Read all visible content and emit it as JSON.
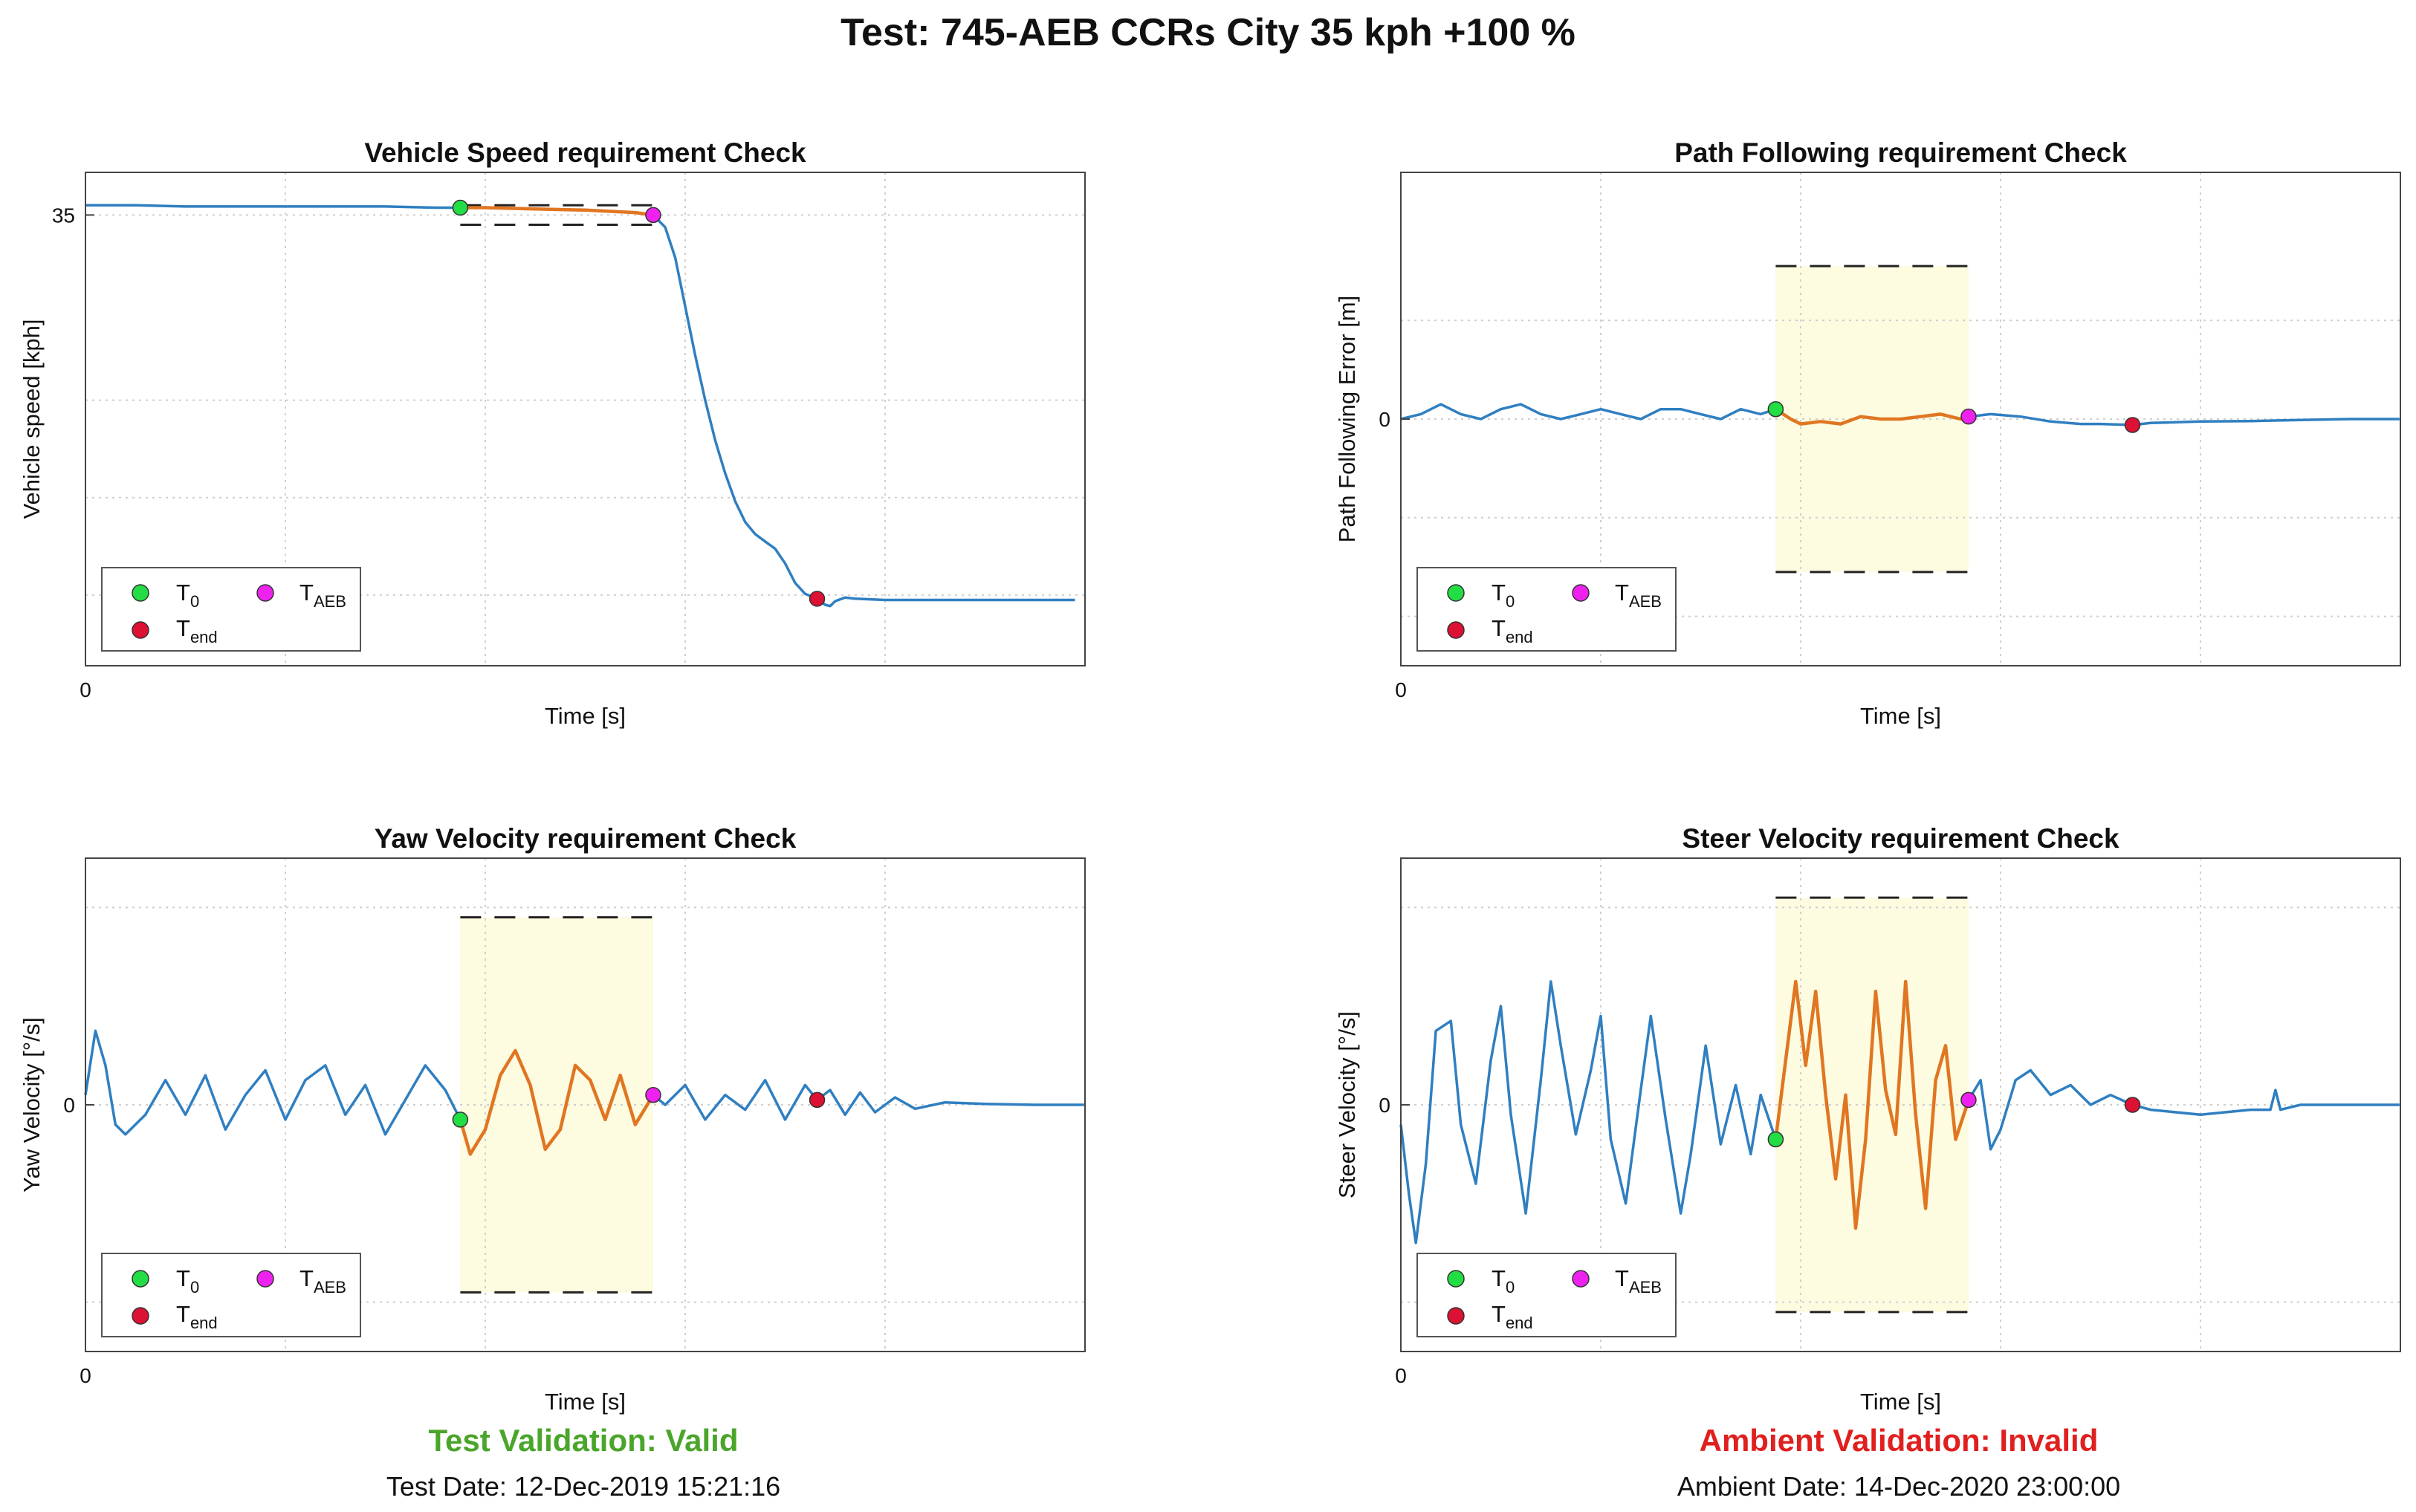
{
  "main_title": "Test: 745-AEB CCRs City 35 kph +100 %",
  "legend_labels": {
    "t0_base": "T",
    "t0_sub": "0",
    "taeb_base": "T",
    "taeb_sub": "AEB",
    "tend_base": "T",
    "tend_sub": "end"
  },
  "colors": {
    "signal": "#2f7fc1",
    "segment": "#e07622",
    "band": "#fdfbe0",
    "t0": "#22dd44",
    "taeb": "#ee22ee",
    "tend": "#dd1133",
    "valid": "#4aa52a",
    "invalid": "#e0201e"
  },
  "footer": {
    "left_status": "Test Validation: Valid",
    "left_date": "Test Date: 12-Dec-2019 15:21:16",
    "right_status": "Ambient Validation: Invalid",
    "right_date": "Ambient Date: 14-Dec-2020 23:00:00"
  },
  "chart_data": [
    {
      "type": "line",
      "id": "speed",
      "title": "Vehicle Speed requirement Check",
      "xlabel": "Time [s]",
      "ylabel": "Vehicle speed [kph]",
      "x_tick_labels": [
        "0"
      ],
      "y_tick_labels": [
        "35"
      ],
      "xlim": [
        0,
        10
      ],
      "ylim": [
        -2,
        38.5
      ],
      "y_ticks": [
        35
      ],
      "y_grid": [
        35,
        19.8,
        11.8,
        3.8
      ],
      "x_grid": [
        2,
        4,
        6,
        8
      ],
      "t0": 3.75,
      "taeb": 5.68,
      "tend": 7.32,
      "band": {
        "x0": 3.75,
        "x1": 5.68,
        "lo": 34.2,
        "hi": 35.8,
        "fill": false
      },
      "series": {
        "name": "Vehicle speed",
        "x": [
          0,
          0.5,
          1,
          1.5,
          2,
          2.5,
          3,
          3.5,
          3.75,
          4,
          4.5,
          5,
          5.5,
          5.68,
          5.8,
          5.9,
          6.0,
          6.1,
          6.2,
          6.3,
          6.4,
          6.5,
          6.6,
          6.7,
          6.8,
          6.9,
          7.0,
          7.1,
          7.2,
          7.32,
          7.4,
          7.45,
          7.5,
          7.6,
          7.7,
          8,
          9,
          9.9
        ],
        "y": [
          35.8,
          35.8,
          35.7,
          35.7,
          35.7,
          35.7,
          35.7,
          35.6,
          35.6,
          35.6,
          35.5,
          35.4,
          35.2,
          35.0,
          34.0,
          31.5,
          27.5,
          23.5,
          19.8,
          16.5,
          13.8,
          11.5,
          9.8,
          8.8,
          8.2,
          7.6,
          6.4,
          4.8,
          3.9,
          3.5,
          3.0,
          2.9,
          3.3,
          3.6,
          3.5,
          3.4,
          3.4,
          3.4
        ]
      }
    },
    {
      "type": "line",
      "id": "path",
      "title": "Path Following requirement Check",
      "xlabel": "Time [s]",
      "ylabel": "Path Following Error [m]",
      "x_tick_labels": [
        "0"
      ],
      "y_tick_labels": [
        "0"
      ],
      "xlim": [
        0,
        10
      ],
      "ylim": [
        -0.5,
        0.5
      ],
      "y_ticks": [
        0
      ],
      "y_grid": [
        0.2,
        0,
        -0.2,
        -0.4
      ],
      "x_grid": [
        2,
        4,
        6,
        8
      ],
      "t0": 3.75,
      "taeb": 5.68,
      "tend": 7.32,
      "band": {
        "x0": 3.75,
        "x1": 5.68,
        "lo": -0.31,
        "hi": 0.31,
        "fill": true
      },
      "series": {
        "name": "Path following error",
        "x": [
          0,
          0.2,
          0.4,
          0.6,
          0.8,
          1.0,
          1.2,
          1.4,
          1.6,
          1.8,
          2.0,
          2.2,
          2.4,
          2.6,
          2.8,
          3.0,
          3.2,
          3.4,
          3.6,
          3.75,
          3.9,
          4.0,
          4.2,
          4.4,
          4.6,
          4.8,
          5.0,
          5.2,
          5.4,
          5.6,
          5.68,
          5.9,
          6.2,
          6.5,
          6.8,
          7.0,
          7.32,
          7.5,
          8.0,
          8.5,
          9.0,
          9.5,
          9.99
        ],
        "y": [
          0.0,
          0.01,
          0.03,
          0.01,
          0.0,
          0.02,
          0.03,
          0.01,
          0.0,
          0.01,
          0.02,
          0.01,
          0.0,
          0.02,
          0.02,
          0.01,
          0.0,
          0.02,
          0.01,
          0.02,
          0.0,
          -0.01,
          -0.005,
          -0.01,
          0.005,
          0.0,
          0.0,
          0.005,
          0.01,
          0.0,
          0.005,
          0.01,
          0.005,
          -0.005,
          -0.01,
          -0.01,
          -0.012,
          -0.008,
          -0.005,
          -0.004,
          -0.002,
          0.0,
          0.0
        ]
      }
    },
    {
      "type": "line",
      "id": "yaw",
      "title": "Yaw Velocity requirement Check",
      "xlabel": "Time [s]",
      "ylabel": "Yaw Velocity [°/s]",
      "x_tick_labels": [
        "0"
      ],
      "y_tick_labels": [
        "0"
      ],
      "xlim": [
        0,
        10
      ],
      "ylim": [
        -5,
        5
      ],
      "y_ticks": [
        0
      ],
      "y_grid": [
        4,
        0,
        -4
      ],
      "x_grid": [
        2,
        4,
        6,
        8
      ],
      "t0": 3.75,
      "taeb": 5.68,
      "tend": 7.32,
      "band": {
        "x0": 3.75,
        "x1": 5.68,
        "lo": -3.8,
        "hi": 3.8,
        "fill": true
      },
      "series": {
        "name": "Yaw velocity",
        "x": [
          0,
          0.1,
          0.2,
          0.3,
          0.4,
          0.6,
          0.8,
          1.0,
          1.2,
          1.4,
          1.6,
          1.8,
          2.0,
          2.2,
          2.4,
          2.6,
          2.8,
          3.0,
          3.2,
          3.4,
          3.6,
          3.75,
          3.85,
          4.0,
          4.15,
          4.3,
          4.45,
          4.6,
          4.75,
          4.9,
          5.05,
          5.2,
          5.35,
          5.5,
          5.68,
          5.8,
          6.0,
          6.2,
          6.4,
          6.6,
          6.8,
          7.0,
          7.2,
          7.32,
          7.45,
          7.6,
          7.75,
          7.9,
          8.1,
          8.3,
          8.6,
          9.0,
          9.5,
          9.99
        ],
        "y": [
          0.2,
          1.5,
          0.8,
          -0.4,
          -0.6,
          -0.2,
          0.5,
          -0.2,
          0.6,
          -0.5,
          0.2,
          0.7,
          -0.3,
          0.5,
          0.8,
          -0.2,
          0.4,
          -0.6,
          0.1,
          0.8,
          0.3,
          -0.3,
          -1.0,
          -0.5,
          0.6,
          1.1,
          0.4,
          -0.9,
          -0.5,
          0.8,
          0.5,
          -0.3,
          0.6,
          -0.4,
          0.2,
          0.0,
          0.4,
          -0.3,
          0.2,
          -0.1,
          0.5,
          -0.3,
          0.4,
          0.1,
          0.3,
          -0.2,
          0.25,
          -0.15,
          0.15,
          -0.08,
          0.05,
          0.02,
          0.0,
          0.0
        ]
      }
    },
    {
      "type": "line",
      "id": "steer",
      "title": "Steer Velocity requirement Check",
      "xlabel": "Time [s]",
      "ylabel": "Steer Velocity [°/s]",
      "x_tick_labels": [
        "0"
      ],
      "y_tick_labels": [
        "0"
      ],
      "xlim": [
        0,
        10
      ],
      "ylim": [
        -5,
        5
      ],
      "y_ticks": [
        0
      ],
      "y_grid": [
        4,
        0,
        -4
      ],
      "x_grid": [
        2,
        4,
        6,
        8
      ],
      "t0": 3.75,
      "taeb": 5.68,
      "tend": 7.32,
      "band": {
        "x0": 3.75,
        "x1": 5.68,
        "lo": -4.2,
        "hi": 4.2,
        "fill": true
      },
      "series": {
        "name": "Steer velocity",
        "x": [
          0,
          0.08,
          0.15,
          0.25,
          0.35,
          0.5,
          0.6,
          0.75,
          0.9,
          1.0,
          1.1,
          1.25,
          1.4,
          1.5,
          1.6,
          1.75,
          1.9,
          2.0,
          2.1,
          2.25,
          2.4,
          2.5,
          2.65,
          2.8,
          2.9,
          3.05,
          3.2,
          3.35,
          3.5,
          3.6,
          3.75,
          3.85,
          3.95,
          4.05,
          4.15,
          4.25,
          4.35,
          4.45,
          4.55,
          4.65,
          4.75,
          4.85,
          4.95,
          5.05,
          5.15,
          5.25,
          5.35,
          5.45,
          5.55,
          5.68,
          5.8,
          5.9,
          6.0,
          6.15,
          6.3,
          6.5,
          6.7,
          6.9,
          7.1,
          7.32,
          7.5,
          8.0,
          8.5,
          8.7,
          8.75,
          8.8,
          9.0,
          9.5,
          9.99
        ],
        "y": [
          -0.4,
          -1.8,
          -2.8,
          -1.2,
          1.5,
          1.7,
          -0.4,
          -1.6,
          0.9,
          2.0,
          -0.2,
          -2.2,
          0.5,
          2.5,
          1.2,
          -0.6,
          0.7,
          1.8,
          -0.7,
          -2.0,
          0.3,
          1.8,
          -0.3,
          -2.2,
          -1.0,
          1.2,
          -0.8,
          0.4,
          -1.0,
          0.2,
          -0.7,
          0.9,
          2.5,
          0.8,
          2.3,
          0.2,
          -1.5,
          0.2,
          -2.5,
          -0.7,
          2.3,
          0.3,
          -0.6,
          2.5,
          -0.2,
          -2.1,
          0.5,
          1.2,
          -0.7,
          0.1,
          0.5,
          -0.9,
          -0.5,
          0.5,
          0.7,
          0.2,
          0.4,
          0.0,
          0.2,
          0.0,
          -0.1,
          -0.2,
          -0.1,
          -0.1,
          0.3,
          -0.1,
          0.0,
          0.0,
          0.0
        ]
      }
    }
  ]
}
